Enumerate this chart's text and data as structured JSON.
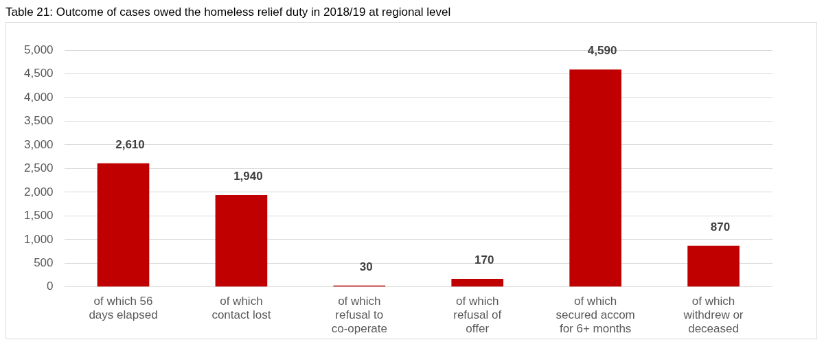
{
  "chart_data": {
    "type": "bar",
    "title": "Table 21: Outcome of cases owed the homeless relief duty in 2018/19 at regional level",
    "categories": [
      "of which 56 days elapsed",
      "of which contact lost",
      "of which refusal to co-operate",
      "of which refusal of offer",
      "of which secured accom for 6+ months",
      "of which withdrew or deceased"
    ],
    "values": [
      2610,
      1940,
      30,
      170,
      4590,
      870
    ],
    "value_labels": [
      "2,610",
      "1,940",
      "30",
      "170",
      "4,590",
      "870"
    ],
    "color": "#c00000",
    "ylim": [
      0,
      5000
    ],
    "yticks": [
      0,
      500,
      {
        "value": 1000,
        "label": "1,000"
      },
      {
        "value": 1500,
        "label": "1,500"
      },
      {
        "value": 2000,
        "label": "2,000"
      },
      {
        "value": 2500,
        "label": "2,500"
      },
      {
        "value": 3000,
        "label": "3,000"
      },
      {
        "value": 3500,
        "label": "3,500"
      },
      {
        "value": 4000,
        "label": "4,000"
      },
      {
        "value": 4500,
        "label": "4,500"
      },
      {
        "value": 5000,
        "label": "5,000"
      }
    ],
    "grid": "y",
    "legend": false
  }
}
